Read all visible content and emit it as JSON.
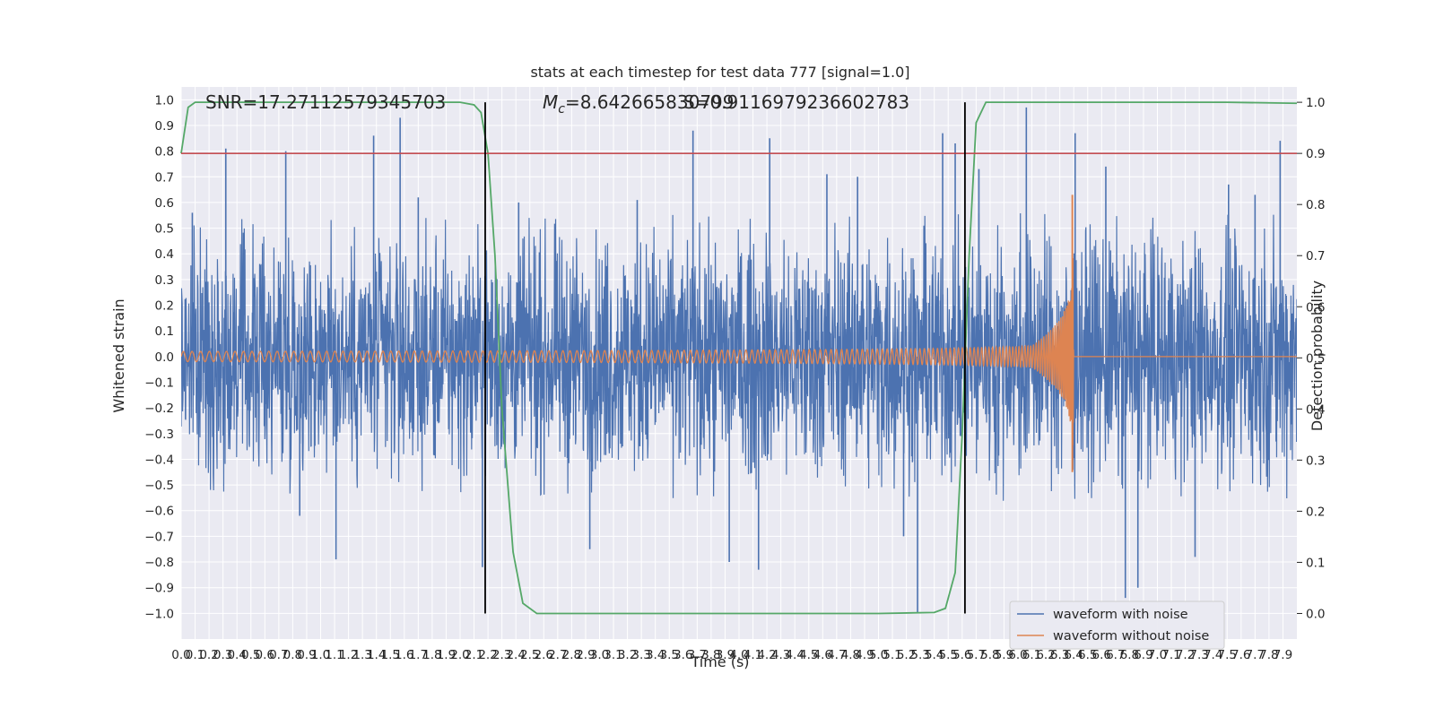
{
  "chart_data": {
    "type": "line",
    "title": "stats at each timestep for test data 777 [signal=1.0]",
    "xlabel": "Time (s)",
    "ylabel": "Whitened strain",
    "y2label": "Detection probability",
    "xlim": [
      0.0,
      8.0
    ],
    "ylim": [
      -1.1,
      1.05
    ],
    "y2lim": [
      -0.05,
      1.03
    ],
    "x_ticks": [
      0.0,
      0.1,
      0.2,
      0.3,
      0.4,
      0.5,
      0.6,
      0.7,
      0.8,
      0.9,
      1.0,
      1.1,
      1.2,
      1.3,
      1.4,
      1.5,
      1.6,
      1.7,
      1.8,
      1.9,
      2.0,
      2.1,
      2.2,
      2.3,
      2.4,
      2.5,
      2.6,
      2.7,
      2.8,
      2.9,
      3.0,
      3.1,
      3.2,
      3.3,
      3.4,
      3.5,
      3.6,
      3.7,
      3.8,
      3.9,
      4.0,
      4.1,
      4.2,
      4.3,
      4.4,
      4.5,
      4.6,
      4.7,
      4.8,
      4.9,
      5.0,
      5.1,
      5.2,
      5.3,
      5.4,
      5.5,
      5.6,
      5.7,
      5.8,
      5.9,
      6.0,
      6.1,
      6.2,
      6.3,
      6.4,
      6.5,
      6.6,
      6.7,
      6.8,
      6.9,
      7.0,
      7.1,
      7.2,
      7.3,
      7.4,
      7.5,
      7.6,
      7.7,
      7.8,
      7.9
    ],
    "x_tick_labels": [
      "0.0",
      "0.1",
      "0.2",
      "0.3",
      "0.4",
      "0.5",
      "0.6",
      "0.7",
      "0.8",
      "0.9",
      "1.0",
      "1.1",
      "1.2",
      "1.3",
      "1.4",
      "1.5",
      "1.6",
      "1.7",
      "1.8",
      "1.9",
      "2.0",
      "2.1",
      "2.2",
      "2.3",
      "2.4",
      "2.5",
      "2.6",
      "2.7",
      "2.8",
      "2.9",
      "3.0",
      "3.1",
      "3.2",
      "3.3",
      "3.4",
      "3.5",
      "3.6",
      "3.7",
      "3.8",
      "3.9",
      "4.0",
      "4.1",
      "4.2",
      "4.3",
      "4.4",
      "4.5",
      "4.6",
      "4.7",
      "4.8",
      "4.9",
      "5.0",
      "5.1",
      "5.2",
      "5.3",
      "5.4",
      "5.5",
      "5.6",
      "5.7",
      "5.8",
      "5.9",
      "6.0",
      "6.1",
      "6.2",
      "6.3",
      "6.4",
      "6.5",
      "6.6",
      "6.7",
      "6.8",
      "6.9",
      "7.0",
      "7.1",
      "7.2",
      "7.3",
      "7.4",
      "7.5",
      "7.6",
      "7.7",
      "7.8",
      "7.9"
    ],
    "y_ticks": [
      -1.0,
      -0.9,
      -0.8,
      -0.7,
      -0.6,
      -0.5,
      -0.4,
      -0.3,
      -0.2,
      -0.1,
      0.0,
      0.1,
      0.2,
      0.3,
      0.4,
      0.5,
      0.6,
      0.7,
      0.8,
      0.9,
      1.0
    ],
    "y_tick_labels": [
      "−1.0",
      "−0.9",
      "−0.8",
      "−0.7",
      "−0.6",
      "−0.5",
      "−0.4",
      "−0.3",
      "−0.2",
      "−0.1",
      "0.0",
      "0.1",
      "0.2",
      "0.3",
      "0.4",
      "0.5",
      "0.6",
      "0.7",
      "0.8",
      "0.9",
      "1.0"
    ],
    "y2_ticks": [
      0.0,
      0.1,
      0.2,
      0.3,
      0.4,
      0.5,
      0.6,
      0.7,
      0.8,
      0.9,
      1.0
    ],
    "y2_tick_labels": [
      "0.0",
      "0.1",
      "0.2",
      "0.3",
      "0.4",
      "0.5",
      "0.6",
      "0.7",
      "0.8",
      "0.9",
      "1.0"
    ],
    "grid": true,
    "legend_position": "lower-right",
    "annotations": {
      "snr": "SNR=17.27112579345703",
      "mc_prefix": "M",
      "mc_sub": "c",
      "mc_value": "=8.642665830799",
      "overlap_text": "S=0.9116979236602783"
    },
    "threshold": 0.9,
    "detection_vlines_x": [
      2.18,
      5.62
    ],
    "series": [
      {
        "name": "waveform with noise",
        "color": "#4c72b0",
        "envelope_pos": [
          [
            0.0,
            0.42
          ],
          [
            0.5,
            0.45
          ],
          [
            1.0,
            0.44
          ],
          [
            1.5,
            0.46
          ],
          [
            2.0,
            0.44
          ],
          [
            2.5,
            0.45
          ],
          [
            3.0,
            0.44
          ],
          [
            3.5,
            0.46
          ],
          [
            4.0,
            0.45
          ],
          [
            4.5,
            0.46
          ],
          [
            5.0,
            0.45
          ],
          [
            5.5,
            0.46
          ],
          [
            6.0,
            0.47
          ],
          [
            6.5,
            0.46
          ],
          [
            7.0,
            0.45
          ],
          [
            7.5,
            0.46
          ],
          [
            8.0,
            0.46
          ]
        ],
        "envelope_neg": [
          [
            0.0,
            -0.42
          ],
          [
            0.5,
            -0.45
          ],
          [
            1.0,
            -0.44
          ],
          [
            1.5,
            -0.46
          ],
          [
            2.0,
            -0.44
          ],
          [
            2.5,
            -0.45
          ],
          [
            3.0,
            -0.44
          ],
          [
            3.5,
            -0.46
          ],
          [
            4.0,
            -0.45
          ],
          [
            4.5,
            -0.46
          ],
          [
            5.0,
            -0.45
          ],
          [
            5.5,
            -0.46
          ],
          [
            6.0,
            -0.47
          ],
          [
            6.5,
            -0.46
          ],
          [
            7.0,
            -0.45
          ],
          [
            7.5,
            -0.46
          ],
          [
            8.0,
            -0.46
          ]
        ],
        "spikes": [
          [
            0.32,
            0.81
          ],
          [
            0.75,
            0.8
          ],
          [
            1.11,
            -0.79
          ],
          [
            1.38,
            0.86
          ],
          [
            1.57,
            0.93
          ],
          [
            2.16,
            -0.82
          ],
          [
            3.67,
            0.88
          ],
          [
            3.93,
            -0.8
          ],
          [
            4.14,
            -0.83
          ],
          [
            4.22,
            0.85
          ],
          [
            5.28,
            -1.0
          ],
          [
            5.46,
            0.87
          ],
          [
            5.55,
            0.83
          ],
          [
            6.06,
            0.97
          ],
          [
            6.41,
            0.87
          ],
          [
            6.77,
            -0.94
          ],
          [
            6.86,
            -0.9
          ],
          [
            7.27,
            -0.78
          ],
          [
            7.88,
            0.84
          ],
          [
            0.08,
            0.56
          ],
          [
            0.85,
            -0.62
          ],
          [
            1.7,
            0.62
          ],
          [
            2.42,
            0.6
          ],
          [
            2.93,
            -0.75
          ],
          [
            3.27,
            0.61
          ],
          [
            4.63,
            0.71
          ],
          [
            4.85,
            0.7
          ],
          [
            5.18,
            -0.7
          ],
          [
            5.72,
            0.73
          ],
          [
            6.63,
            0.74
          ],
          [
            7.51,
            0.67
          ],
          [
            7.7,
            0.63
          ]
        ]
      },
      {
        "name": "waveform without noise",
        "color": "#dd8452",
        "chirp": {
          "t_merge": 6.4,
          "amp_start": 0.02,
          "amp_peak": 0.63,
          "peak_min": -0.45,
          "ringdown_offset": 0.0
        },
        "points": [
          [
            0.0,
            0.02
          ],
          [
            1.0,
            0.021
          ],
          [
            2.0,
            0.023
          ],
          [
            3.0,
            0.027
          ],
          [
            4.0,
            0.035
          ],
          [
            5.0,
            0.055
          ],
          [
            5.5,
            0.075
          ],
          [
            6.0,
            0.14
          ],
          [
            6.2,
            0.22
          ],
          [
            6.3,
            0.32
          ],
          [
            6.35,
            0.45
          ],
          [
            6.39,
            0.63
          ],
          [
            6.4,
            0.0
          ],
          [
            8.0,
            0.0
          ]
        ]
      },
      {
        "name": "",
        "color": "#55a868",
        "axis": "right",
        "points": [
          [
            0.0,
            0.9
          ],
          [
            0.05,
            0.99
          ],
          [
            0.1,
            1.0
          ],
          [
            0.5,
            1.0
          ],
          [
            1.0,
            1.0
          ],
          [
            1.5,
            1.0
          ],
          [
            2.0,
            1.0
          ],
          [
            2.1,
            0.995
          ],
          [
            2.15,
            0.98
          ],
          [
            2.2,
            0.9
          ],
          [
            2.25,
            0.7
          ],
          [
            2.3,
            0.4
          ],
          [
            2.38,
            0.12
          ],
          [
            2.45,
            0.02
          ],
          [
            2.55,
            0.0
          ],
          [
            3.0,
            0.0
          ],
          [
            4.0,
            0.0
          ],
          [
            5.0,
            0.0
          ],
          [
            5.4,
            0.002
          ],
          [
            5.48,
            0.01
          ],
          [
            5.55,
            0.08
          ],
          [
            5.6,
            0.35
          ],
          [
            5.65,
            0.7
          ],
          [
            5.7,
            0.96
          ],
          [
            5.77,
            1.0
          ],
          [
            6.5,
            1.0
          ],
          [
            7.5,
            1.0
          ],
          [
            8.0,
            0.998
          ]
        ]
      },
      {
        "name": "",
        "color": "#c44e52",
        "axis": "right",
        "points": [
          [
            0.0,
            0.9
          ],
          [
            8.0,
            0.9
          ]
        ]
      }
    ]
  }
}
